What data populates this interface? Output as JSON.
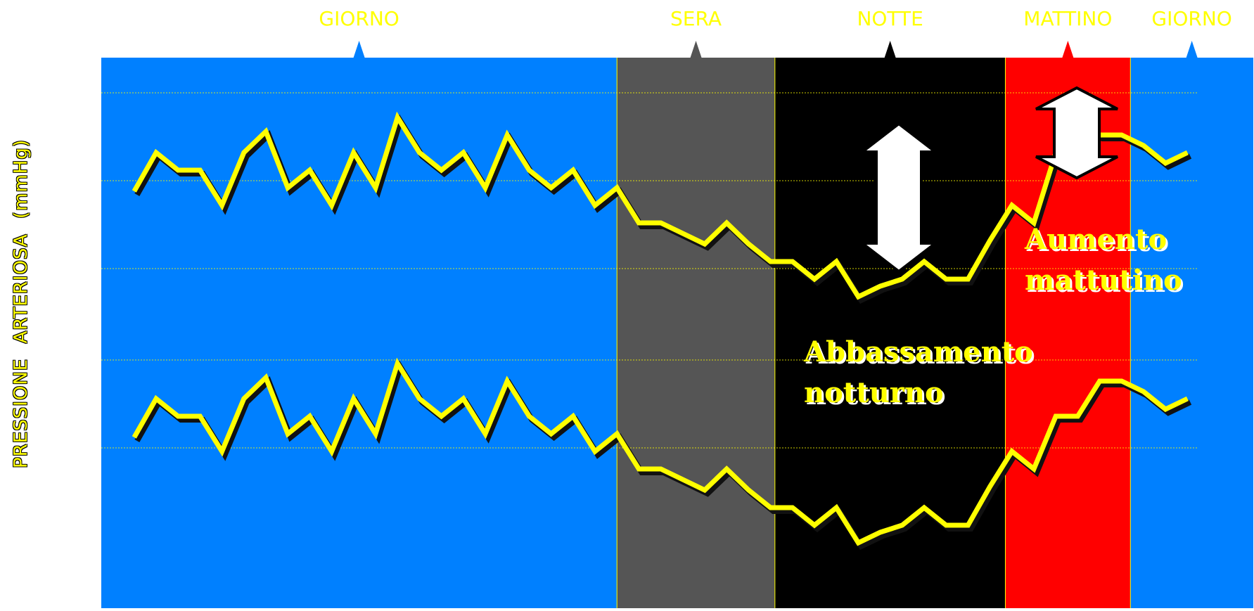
{
  "chart_data": {
    "type": "line",
    "title": "",
    "xlabel": "",
    "ylabel": "PRESSIONE  ARTERIOSA  (mmHg)",
    "ylabel_parts": [
      "PRESSIONE",
      "ARTERIOSA",
      "(mmHg)"
    ],
    "grid": true,
    "legend": "none",
    "periods": [
      {
        "label": "GIORNO",
        "color": "#0080ff",
        "start": 0,
        "end": 23.5
      },
      {
        "label": "SERA",
        "color": "#555555",
        "start": 23.5,
        "end": 30.7
      },
      {
        "label": "NOTTE",
        "color": "#000000",
        "start": 30.7,
        "end": 41.2
      },
      {
        "label": "MATTINO",
        "color": "#ff0000",
        "start": 41.2,
        "end": 46.9
      },
      {
        "label": "GIORNO",
        "color": "#0080ff",
        "start": 46.9,
        "end": 52.5
      }
    ],
    "x": [
      1.5,
      2.5,
      3.5,
      4.5,
      5.5,
      6.5,
      7.5,
      8.5,
      9.5,
      10.5,
      11.5,
      12.5,
      13.5,
      14.5,
      15.5,
      16.5,
      17.5,
      18.5,
      19.5,
      20.5,
      21.5,
      22.5,
      23.5,
      24.5,
      25.5,
      26.5,
      27.5,
      28.5,
      29.5,
      30.5,
      31.5,
      32.5,
      33.5,
      34.5,
      35.5,
      36.5,
      37.5,
      38.5,
      39.5,
      40.5,
      41.5,
      42.5,
      43.5,
      44.5,
      45.5,
      46.5,
      47.5,
      48.5,
      49.5
    ],
    "series": [
      {
        "values": [
          212,
          223,
          218,
          218,
          208,
          223,
          229,
          213,
          218,
          208,
          223,
          213,
          233,
          223,
          218,
          223,
          213,
          228,
          218,
          213,
          218,
          208,
          213,
          203,
          203,
          200,
          197,
          203,
          197,
          192,
          192,
          187,
          192,
          182,
          185,
          187,
          192,
          187,
          187,
          198,
          208,
          203,
          223,
          235,
          228,
          228,
          225,
          220,
          223
        ]
      },
      {
        "values": [
          142,
          153,
          148,
          148,
          138,
          153,
          159,
          143,
          148,
          138,
          153,
          143,
          163,
          153,
          148,
          153,
          143,
          158,
          148,
          143,
          148,
          138,
          143,
          133,
          133,
          130,
          127,
          133,
          127,
          122,
          122,
          117,
          122,
          112,
          115,
          117,
          122,
          117,
          117,
          128,
          138,
          133,
          148,
          148,
          158,
          158,
          155,
          150,
          153
        ]
      }
    ],
    "ylim": [
      100,
      250
    ],
    "annotations": [
      {
        "text_lines": [
          "Abbassamento",
          "notturno"
        ],
        "color": "#ffff00"
      },
      {
        "text_lines": [
          "Aumento",
          "mattutino"
        ],
        "color": "#ffff00"
      }
    ],
    "colors": {
      "line": "#ffff00",
      "shadow": "#111111",
      "grid": "#ffff00",
      "label": "#ffff00",
      "arrow_fill": "#ffffff"
    }
  }
}
